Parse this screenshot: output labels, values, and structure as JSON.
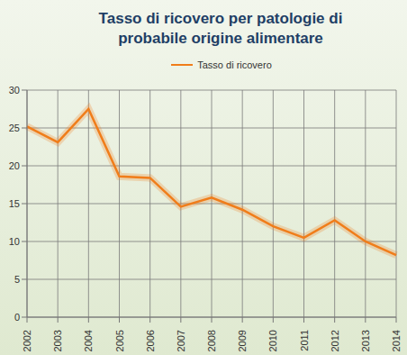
{
  "chart_data": {
    "type": "line",
    "title": "Tasso di ricovero per patologie di probabile origine alimentare",
    "categories": [
      "2002",
      "2003",
      "2004",
      "2005",
      "2006",
      "2007",
      "2008",
      "2009",
      "2010",
      "2011",
      "2012",
      "2013",
      "2014"
    ],
    "series": [
      {
        "name": "Tasso di ricovero",
        "color": "#f07d1a",
        "values": [
          25.2,
          23.1,
          27.5,
          18.6,
          18.4,
          14.6,
          15.8,
          14.2,
          12.0,
          10.5,
          12.8,
          10.0,
          8.2
        ]
      }
    ],
    "ylim": [
      0,
      30
    ],
    "yticks": [
      0,
      5,
      10,
      15,
      20,
      25,
      30
    ],
    "grid": true,
    "legend": "top"
  }
}
